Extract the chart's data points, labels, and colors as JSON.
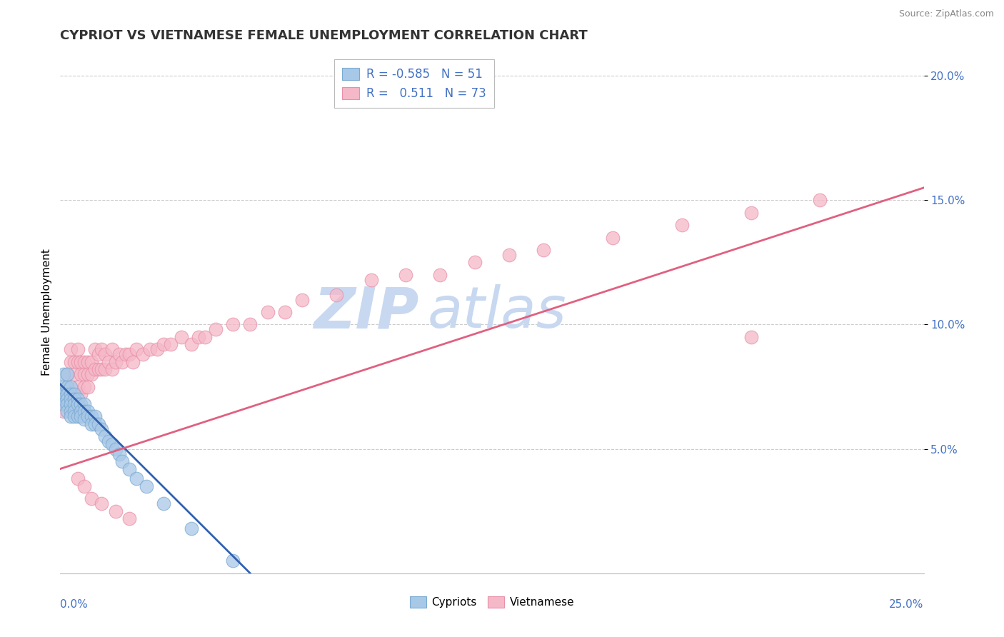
{
  "title": "CYPRIOT VS VIETNAMESE FEMALE UNEMPLOYMENT CORRELATION CHART",
  "source": "Source: ZipAtlas.com",
  "ylabel": "Female Unemployment",
  "xlim": [
    0.0,
    0.25
  ],
  "ylim": [
    0.0,
    0.21
  ],
  "yticks": [
    0.05,
    0.1,
    0.15,
    0.2
  ],
  "ytick_labels": [
    "5.0%",
    "10.0%",
    "15.0%",
    "20.0%"
  ],
  "xtick_left_label": "0.0%",
  "xtick_right_label": "25.0%",
  "legend_r_cypriot": "-0.585",
  "legend_n_cypriot": "51",
  "legend_r_vietnamese": "0.511",
  "legend_n_vietnamese": "73",
  "cypriot_color": "#a8c8e8",
  "vietnamese_color": "#f5b8c8",
  "cypriot_edge_color": "#7aaad0",
  "vietnamese_edge_color": "#e890a8",
  "cypriot_line_color": "#3060b0",
  "vietnamese_line_color": "#e06080",
  "background_color": "#ffffff",
  "grid_color": "#cccccc",
  "title_color": "#333333",
  "axis_label_color": "#000000",
  "tick_color": "#4472c4",
  "watermark_zip_color": "#c8d8f0",
  "watermark_atlas_color": "#c8d8f0",
  "title_fontsize": 13,
  "axis_label_fontsize": 11,
  "tick_fontsize": 11,
  "legend_fontsize": 12,
  "source_fontsize": 9,
  "cypriot_line_start_x": 0.0,
  "cypriot_line_end_x": 0.055,
  "cypriot_line_start_y": 0.076,
  "cypriot_line_end_y": 0.0,
  "vietnamese_line_start_x": 0.0,
  "vietnamese_line_end_x": 0.25,
  "vietnamese_line_start_y": 0.042,
  "vietnamese_line_end_y": 0.155,
  "cypriot_points_x": [
    0.001,
    0.001,
    0.001,
    0.001,
    0.001,
    0.002,
    0.002,
    0.002,
    0.002,
    0.002,
    0.002,
    0.003,
    0.003,
    0.003,
    0.003,
    0.003,
    0.003,
    0.004,
    0.004,
    0.004,
    0.004,
    0.004,
    0.005,
    0.005,
    0.005,
    0.006,
    0.006,
    0.006,
    0.007,
    0.007,
    0.007,
    0.008,
    0.008,
    0.009,
    0.009,
    0.01,
    0.01,
    0.011,
    0.012,
    0.013,
    0.014,
    0.015,
    0.016,
    0.017,
    0.018,
    0.02,
    0.022,
    0.025,
    0.03,
    0.038,
    0.05
  ],
  "cypriot_points_y": [
    0.08,
    0.075,
    0.072,
    0.07,
    0.068,
    0.08,
    0.075,
    0.072,
    0.07,
    0.068,
    0.065,
    0.075,
    0.072,
    0.07,
    0.068,
    0.065,
    0.063,
    0.072,
    0.07,
    0.068,
    0.065,
    0.063,
    0.07,
    0.068,
    0.063,
    0.068,
    0.065,
    0.063,
    0.068,
    0.065,
    0.062,
    0.065,
    0.063,
    0.063,
    0.06,
    0.063,
    0.06,
    0.06,
    0.058,
    0.055,
    0.053,
    0.052,
    0.05,
    0.048,
    0.045,
    0.042,
    0.038,
    0.035,
    0.028,
    0.018,
    0.005
  ],
  "vietnamese_points_x": [
    0.001,
    0.002,
    0.002,
    0.003,
    0.003,
    0.003,
    0.004,
    0.004,
    0.005,
    0.005,
    0.005,
    0.006,
    0.006,
    0.006,
    0.007,
    0.007,
    0.007,
    0.008,
    0.008,
    0.008,
    0.009,
    0.009,
    0.01,
    0.01,
    0.011,
    0.011,
    0.012,
    0.012,
    0.013,
    0.013,
    0.014,
    0.015,
    0.015,
    0.016,
    0.017,
    0.018,
    0.019,
    0.02,
    0.021,
    0.022,
    0.024,
    0.026,
    0.028,
    0.03,
    0.032,
    0.035,
    0.038,
    0.04,
    0.042,
    0.045,
    0.05,
    0.055,
    0.06,
    0.065,
    0.07,
    0.08,
    0.09,
    0.1,
    0.11,
    0.12,
    0.13,
    0.14,
    0.16,
    0.18,
    0.2,
    0.22,
    0.005,
    0.007,
    0.009,
    0.012,
    0.016,
    0.02,
    0.2
  ],
  "vietnamese_points_y": [
    0.065,
    0.08,
    0.075,
    0.09,
    0.085,
    0.07,
    0.085,
    0.08,
    0.09,
    0.085,
    0.075,
    0.085,
    0.08,
    0.072,
    0.085,
    0.08,
    0.075,
    0.085,
    0.08,
    0.075,
    0.085,
    0.08,
    0.09,
    0.082,
    0.088,
    0.082,
    0.09,
    0.082,
    0.088,
    0.082,
    0.085,
    0.09,
    0.082,
    0.085,
    0.088,
    0.085,
    0.088,
    0.088,
    0.085,
    0.09,
    0.088,
    0.09,
    0.09,
    0.092,
    0.092,
    0.095,
    0.092,
    0.095,
    0.095,
    0.098,
    0.1,
    0.1,
    0.105,
    0.105,
    0.11,
    0.112,
    0.118,
    0.12,
    0.12,
    0.125,
    0.128,
    0.13,
    0.135,
    0.14,
    0.145,
    0.15,
    0.038,
    0.035,
    0.03,
    0.028,
    0.025,
    0.022,
    0.095
  ]
}
